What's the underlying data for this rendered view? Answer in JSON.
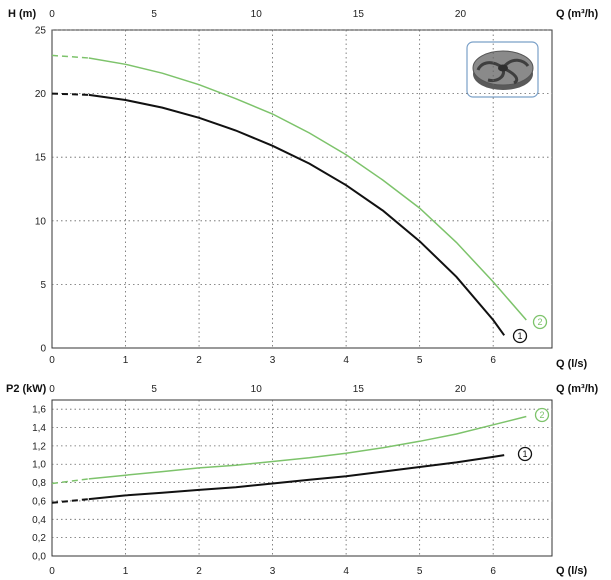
{
  "chart_data": [
    {
      "type": "line",
      "name_key": "head",
      "ylabel": "H (m)",
      "xlabel": "Q (l/s)",
      "x2label": "Q (m³/h)",
      "xlim": [
        0,
        6.8
      ],
      "ylim": [
        0,
        25
      ],
      "xticks": [
        "0",
        "1",
        "2",
        "3",
        "4",
        "5",
        "6"
      ],
      "x2ticks": [
        "0",
        "5",
        "10",
        "15",
        "20"
      ],
      "yticks": [
        "0",
        "5",
        "10",
        "15",
        "20",
        "25"
      ],
      "grid": true,
      "series": [
        {
          "marker_label": "1",
          "color": "#111111",
          "x": [
            0.0,
            0.5,
            1.0,
            1.5,
            2.0,
            2.5,
            3.0,
            3.5,
            4.0,
            4.5,
            5.0,
            5.5,
            6.0,
            6.15
          ],
          "y": [
            20.0,
            19.9,
            19.5,
            18.9,
            18.1,
            17.1,
            15.9,
            14.5,
            12.8,
            10.8,
            8.4,
            5.6,
            2.2,
            1.0
          ]
        },
        {
          "marker_label": "2",
          "color": "#7dc36b",
          "x": [
            0.0,
            0.5,
            1.0,
            1.5,
            2.0,
            2.5,
            3.0,
            3.5,
            4.0,
            4.5,
            5.0,
            5.5,
            6.0,
            6.45
          ],
          "y": [
            23.0,
            22.8,
            22.3,
            21.6,
            20.7,
            19.6,
            18.4,
            16.9,
            15.2,
            13.2,
            11.0,
            8.3,
            5.2,
            2.2
          ]
        }
      ]
    },
    {
      "type": "line",
      "name_key": "power",
      "ylabel": "P2 (kW)",
      "xlabel": "Q (l/s)",
      "x2label": "Q (m³/h)",
      "xlim": [
        0,
        6.8
      ],
      "ylim": [
        0,
        1.7
      ],
      "xticks": [
        "0",
        "1",
        "2",
        "3",
        "4",
        "5",
        "6"
      ],
      "x2ticks": [
        "0",
        "5",
        "10",
        "15",
        "20"
      ],
      "yticks": [
        "0,0",
        "0,2",
        "0,4",
        "0,6",
        "0,8",
        "1,0",
        "1,2",
        "1,4",
        "1,6"
      ],
      "grid": true,
      "series": [
        {
          "marker_label": "1",
          "color": "#111111",
          "x": [
            0.0,
            0.5,
            1.0,
            1.5,
            2.0,
            2.5,
            3.0,
            3.5,
            4.0,
            4.5,
            5.0,
            5.5,
            6.0,
            6.15
          ],
          "y": [
            0.58,
            0.62,
            0.66,
            0.69,
            0.72,
            0.75,
            0.79,
            0.83,
            0.87,
            0.92,
            0.97,
            1.02,
            1.08,
            1.1
          ]
        },
        {
          "marker_label": "2",
          "color": "#7dc36b",
          "x": [
            0.0,
            0.5,
            1.0,
            1.5,
            2.0,
            2.5,
            3.0,
            3.5,
            4.0,
            4.5,
            5.0,
            5.5,
            6.0,
            6.45
          ],
          "y": [
            0.79,
            0.84,
            0.88,
            0.92,
            0.96,
            0.99,
            1.03,
            1.07,
            1.12,
            1.18,
            1.25,
            1.33,
            1.43,
            1.52
          ]
        }
      ]
    }
  ],
  "impeller_image_icon": "pump-impeller-icon"
}
